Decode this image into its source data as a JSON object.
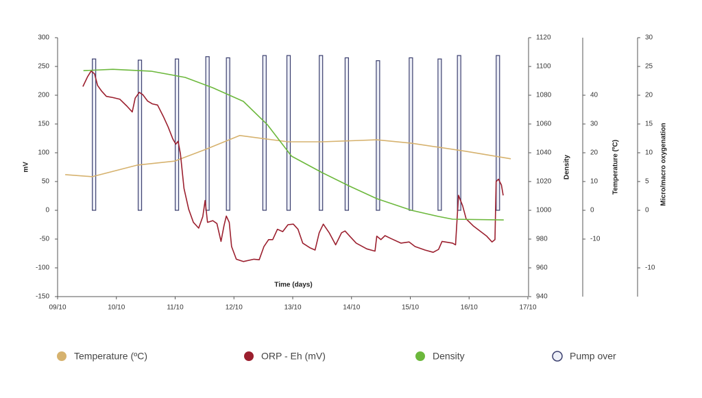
{
  "chart_data": {
    "type": "line",
    "xlabel": "Time (days)",
    "xlim": [
      0,
      8
    ],
    "xticks": [
      {
        "value": 0,
        "label": "09/10"
      },
      {
        "value": 1,
        "label": "10/10"
      },
      {
        "value": 2,
        "label": "11/10"
      },
      {
        "value": 3,
        "label": "12/10"
      },
      {
        "value": 4,
        "label": "13/10"
      },
      {
        "value": 5,
        "label": "14/10"
      },
      {
        "value": 6,
        "label": "15/10"
      },
      {
        "value": 7,
        "label": "16/10"
      },
      {
        "value": 8,
        "label": "17/10"
      }
    ],
    "ylabel": "mV",
    "ylim": [
      -150,
      300
    ],
    "yticks": [
      300,
      250,
      200,
      150,
      100,
      50,
      0,
      -50,
      -100,
      -150
    ],
    "y2label": "Density",
    "y2lim": [
      940,
      1120
    ],
    "y2ticks": [
      1120,
      1100,
      1080,
      1060,
      1040,
      1020,
      1000,
      980,
      960,
      940
    ],
    "y3label": "Temperature (ºC)",
    "y3lim": [
      -30,
      60
    ],
    "y3ticks": [
      40,
      30,
      20,
      10,
      0,
      -10
    ],
    "y4label": "Micro/macro oxygenation",
    "y4lim": [
      -15,
      30
    ],
    "y4ticks": [
      30,
      25,
      20,
      15,
      10,
      5,
      0,
      -10
    ],
    "series": [
      {
        "name": "Temperature (ºC)",
        "color": "#d6b26e",
        "axis": "y3",
        "x": [
          0.13,
          0.59,
          1.35,
          1.99,
          2.52,
          3.1,
          3.92,
          4.5,
          5.43,
          6.02,
          6.95,
          7.71
        ],
        "values": [
          12.4,
          11.7,
          15.7,
          17.1,
          21.2,
          26,
          23.8,
          23.8,
          24.5,
          23.3,
          20.5,
          17.9
        ]
      },
      {
        "name": "ORP - Eh (mV)",
        "color": "#9b1f2e",
        "axis": "y",
        "x": [
          0.43,
          0.51,
          0.57,
          0.63,
          0.68,
          0.75,
          0.83,
          0.94,
          1.06,
          1.18,
          1.27,
          1.32,
          1.39,
          1.45,
          1.53,
          1.61,
          1.7,
          1.8,
          1.88,
          1.96,
          2.01,
          2.05,
          2.09,
          2.15,
          2.23,
          2.31,
          2.4,
          2.47,
          2.51,
          2.55,
          2.64,
          2.71,
          2.78,
          2.83,
          2.87,
          2.92,
          2.96,
          3.04,
          3.16,
          3.34,
          3.43,
          3.51,
          3.59,
          3.66,
          3.74,
          3.83,
          3.92,
          4.01,
          4.09,
          4.17,
          4.29,
          4.38,
          4.45,
          4.52,
          4.62,
          4.73,
          4.83,
          4.89,
          4.97,
          5.08,
          5.26,
          5.4,
          5.43,
          5.5,
          5.57,
          5.67,
          5.84,
          5.98,
          6.08,
          6.25,
          6.39,
          6.48,
          6.54,
          6.72,
          6.77,
          6.82,
          6.89,
          6.95,
          7.07,
          7.3,
          7.39,
          7.44,
          7.46,
          7.5,
          7.55,
          7.58
        ],
        "values": [
          215,
          232,
          242,
          237,
          217,
          207,
          198,
          196,
          193,
          181,
          171,
          195,
          205,
          201,
          190,
          185,
          183,
          163,
          145,
          124,
          115,
          120,
          98,
          38,
          2,
          -21,
          -31,
          -11,
          17,
          -21,
          -18,
          -23,
          -54,
          -27,
          -10,
          -21,
          -63,
          -85,
          -89,
          -85,
          -86,
          -63,
          -51,
          -51,
          -33,
          -37,
          -25,
          -24,
          -33,
          -57,
          -65,
          -69,
          -39,
          -24,
          -39,
          -60,
          -39,
          -36,
          -45,
          -57,
          -67,
          -71,
          -45,
          -51,
          -44,
          -49,
          -57,
          -55,
          -63,
          -69,
          -73,
          -68,
          -54,
          -57,
          -60,
          26,
          8,
          -15,
          -27,
          -45,
          -55,
          -51,
          50,
          54,
          44,
          26
        ]
      },
      {
        "name": "Density",
        "color": "#6cb83c",
        "axis": "y2",
        "x": [
          0.44,
          0.94,
          1.59,
          2.17,
          2.64,
          3.16,
          3.57,
          3.98,
          4.5,
          4.97,
          5.43,
          6.02,
          6.48,
          6.72,
          7.59
        ],
        "values": [
          1097.1,
          1098,
          1096.7,
          1092.4,
          1085.2,
          1075.7,
          1059.5,
          1037.6,
          1026.2,
          1016.7,
          1008.1,
          1000,
          995.7,
          993.8,
          993.3
        ]
      },
      {
        "name": "Pump over",
        "color": "#3b3f6e",
        "axis": "y",
        "type": "bar",
        "x": [
          0.62,
          1.4,
          2.03,
          2.55,
          2.9,
          3.52,
          3.93,
          4.48,
          4.92,
          5.45,
          6.01,
          6.5,
          6.83,
          7.49
        ],
        "values": [
          263,
          261,
          263,
          267,
          265,
          269,
          269,
          269,
          265,
          260,
          265,
          263,
          269,
          269
        ]
      }
    ]
  }
}
